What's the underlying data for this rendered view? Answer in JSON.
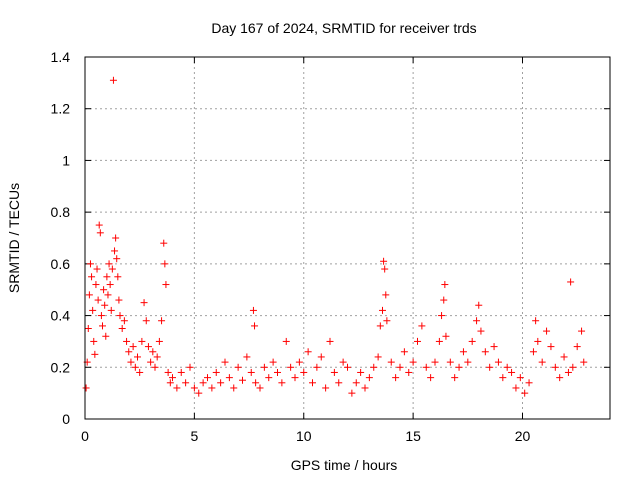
{
  "chart_data": {
    "type": "scatter",
    "title": "Day 167 of 2024, SRMTID for receiver trds",
    "xlabel": "GPS time / hours",
    "ylabel": "SRMTID / TECUs",
    "xlim": [
      0,
      24
    ],
    "ylim": [
      0,
      1.4
    ],
    "xticks": [
      0,
      5,
      10,
      15,
      20
    ],
    "xtick_labels": [
      "0",
      "5",
      "10",
      "15",
      "20"
    ],
    "yticks": [
      0,
      0.2,
      0.4,
      0.6,
      0.8,
      1.0,
      1.2,
      1.4
    ],
    "ytick_labels": [
      "0",
      "0.2",
      "0.4",
      "0.6",
      "0.8",
      "1",
      "1.2",
      "1.4"
    ],
    "grid": true,
    "marker": "+",
    "color": "#ff0000",
    "series": [
      {
        "name": "SRMTID",
        "points": [
          [
            0.05,
            0.12
          ],
          [
            0.1,
            0.22
          ],
          [
            0.15,
            0.35
          ],
          [
            0.2,
            0.48
          ],
          [
            0.25,
            0.6
          ],
          [
            0.3,
            0.55
          ],
          [
            0.35,
            0.42
          ],
          [
            0.4,
            0.3
          ],
          [
            0.45,
            0.25
          ],
          [
            0.5,
            0.52
          ],
          [
            0.55,
            0.58
          ],
          [
            0.6,
            0.46
          ],
          [
            0.65,
            0.75
          ],
          [
            0.7,
            0.72
          ],
          [
            0.75,
            0.4
          ],
          [
            0.8,
            0.36
          ],
          [
            0.85,
            0.5
          ],
          [
            0.9,
            0.44
          ],
          [
            0.95,
            0.32
          ],
          [
            1.0,
            0.55
          ],
          [
            1.05,
            0.48
          ],
          [
            1.1,
            0.6
          ],
          [
            1.15,
            0.52
          ],
          [
            1.2,
            0.42
          ],
          [
            1.25,
            0.58
          ],
          [
            1.3,
            1.31
          ],
          [
            1.35,
            0.65
          ],
          [
            1.4,
            0.7
          ],
          [
            1.45,
            0.62
          ],
          [
            1.5,
            0.55
          ],
          [
            1.55,
            0.46
          ],
          [
            1.6,
            0.4
          ],
          [
            1.7,
            0.35
          ],
          [
            1.8,
            0.38
          ],
          [
            1.9,
            0.3
          ],
          [
            2.0,
            0.26
          ],
          [
            2.1,
            0.22
          ],
          [
            2.2,
            0.28
          ],
          [
            2.3,
            0.2
          ],
          [
            2.4,
            0.24
          ],
          [
            2.5,
            0.18
          ],
          [
            2.6,
            0.3
          ],
          [
            2.7,
            0.45
          ],
          [
            2.8,
            0.38
          ],
          [
            2.9,
            0.28
          ],
          [
            3.0,
            0.22
          ],
          [
            3.1,
            0.26
          ],
          [
            3.2,
            0.2
          ],
          [
            3.3,
            0.24
          ],
          [
            3.4,
            0.3
          ],
          [
            3.5,
            0.38
          ],
          [
            3.6,
            0.68
          ],
          [
            3.65,
            0.6
          ],
          [
            3.7,
            0.52
          ],
          [
            3.8,
            0.18
          ],
          [
            3.9,
            0.14
          ],
          [
            4.0,
            0.16
          ],
          [
            4.2,
            0.12
          ],
          [
            4.4,
            0.18
          ],
          [
            4.6,
            0.14
          ],
          [
            4.8,
            0.2
          ],
          [
            5.0,
            0.12
          ],
          [
            5.2,
            0.1
          ],
          [
            5.4,
            0.14
          ],
          [
            5.6,
            0.16
          ],
          [
            5.8,
            0.12
          ],
          [
            6.0,
            0.18
          ],
          [
            6.2,
            0.14
          ],
          [
            6.4,
            0.22
          ],
          [
            6.6,
            0.16
          ],
          [
            6.8,
            0.12
          ],
          [
            7.0,
            0.2
          ],
          [
            7.2,
            0.15
          ],
          [
            7.4,
            0.24
          ],
          [
            7.6,
            0.18
          ],
          [
            7.7,
            0.42
          ],
          [
            7.75,
            0.36
          ],
          [
            7.8,
            0.14
          ],
          [
            8.0,
            0.12
          ],
          [
            8.2,
            0.2
          ],
          [
            8.4,
            0.16
          ],
          [
            8.6,
            0.22
          ],
          [
            8.8,
            0.18
          ],
          [
            9.0,
            0.14
          ],
          [
            9.2,
            0.3
          ],
          [
            9.4,
            0.2
          ],
          [
            9.6,
            0.16
          ],
          [
            9.8,
            0.22
          ],
          [
            10.0,
            0.18
          ],
          [
            10.2,
            0.26
          ],
          [
            10.4,
            0.14
          ],
          [
            10.6,
            0.2
          ],
          [
            10.8,
            0.24
          ],
          [
            11.0,
            0.12
          ],
          [
            11.2,
            0.3
          ],
          [
            11.4,
            0.18
          ],
          [
            11.6,
            0.14
          ],
          [
            11.8,
            0.22
          ],
          [
            12.0,
            0.2
          ],
          [
            12.2,
            0.1
          ],
          [
            12.4,
            0.14
          ],
          [
            12.6,
            0.18
          ],
          [
            12.8,
            0.12
          ],
          [
            13.0,
            0.16
          ],
          [
            13.2,
            0.2
          ],
          [
            13.4,
            0.24
          ],
          [
            13.5,
            0.36
          ],
          [
            13.6,
            0.42
          ],
          [
            13.65,
            0.61
          ],
          [
            13.7,
            0.58
          ],
          [
            13.75,
            0.48
          ],
          [
            13.8,
            0.38
          ],
          [
            14.0,
            0.22
          ],
          [
            14.2,
            0.16
          ],
          [
            14.4,
            0.2
          ],
          [
            14.6,
            0.26
          ],
          [
            14.8,
            0.18
          ],
          [
            15.0,
            0.22
          ],
          [
            15.2,
            0.3
          ],
          [
            15.4,
            0.36
          ],
          [
            15.6,
            0.2
          ],
          [
            15.8,
            0.16
          ],
          [
            16.0,
            0.22
          ],
          [
            16.2,
            0.3
          ],
          [
            16.3,
            0.4
          ],
          [
            16.4,
            0.46
          ],
          [
            16.45,
            0.52
          ],
          [
            16.5,
            0.32
          ],
          [
            16.7,
            0.22
          ],
          [
            16.9,
            0.16
          ],
          [
            17.1,
            0.2
          ],
          [
            17.3,
            0.26
          ],
          [
            17.5,
            0.22
          ],
          [
            17.7,
            0.3
          ],
          [
            17.9,
            0.38
          ],
          [
            18.0,
            0.44
          ],
          [
            18.1,
            0.34
          ],
          [
            18.3,
            0.26
          ],
          [
            18.5,
            0.2
          ],
          [
            18.7,
            0.28
          ],
          [
            18.9,
            0.22
          ],
          [
            19.1,
            0.16
          ],
          [
            19.3,
            0.2
          ],
          [
            19.5,
            0.18
          ],
          [
            19.7,
            0.12
          ],
          [
            19.9,
            0.16
          ],
          [
            20.1,
            0.1
          ],
          [
            20.3,
            0.14
          ],
          [
            20.5,
            0.26
          ],
          [
            20.6,
            0.38
          ],
          [
            20.7,
            0.3
          ],
          [
            20.9,
            0.22
          ],
          [
            21.1,
            0.34
          ],
          [
            21.3,
            0.28
          ],
          [
            21.5,
            0.2
          ],
          [
            21.7,
            0.16
          ],
          [
            21.9,
            0.24
          ],
          [
            22.1,
            0.18
          ],
          [
            22.2,
            0.53
          ],
          [
            22.3,
            0.2
          ],
          [
            22.5,
            0.28
          ],
          [
            22.7,
            0.34
          ],
          [
            22.8,
            0.22
          ]
        ]
      }
    ]
  }
}
